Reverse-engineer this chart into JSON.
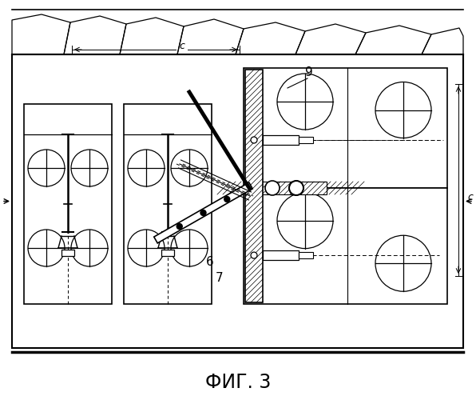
{
  "title": "ФИГ. 3",
  "bg_color": "#ffffff",
  "line_color": "#000000",
  "fig_width": 5.96,
  "fig_height": 5.0,
  "dpi": 100,
  "label_9": "9",
  "label_6": "6",
  "label_7": "7",
  "label_c": "с"
}
